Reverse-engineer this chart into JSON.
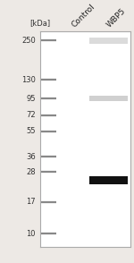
{
  "fig_width": 1.5,
  "fig_height": 2.94,
  "dpi": 100,
  "bg_color": "#ede9e5",
  "panel_bg": "#ffffff",
  "border_color": "#aaaaaa",
  "kda_label": "[kDa]",
  "ladder_positions": [
    250,
    130,
    95,
    72,
    55,
    36,
    28,
    17,
    10
  ],
  "ladder_band_color": "#888888",
  "lane_labels": [
    "Control",
    "WBP5"
  ],
  "lane_label_fontsize": 6.5,
  "ymin": 8,
  "ymax": 290,
  "marker_label_fontsize": 6.0,
  "tick_label_color": "#333333",
  "wbp5_band_250_color": "#c8c8c8",
  "wbp5_band_95_color": "#b8b8b8",
  "wbp5_band_25_color": "#111111"
}
